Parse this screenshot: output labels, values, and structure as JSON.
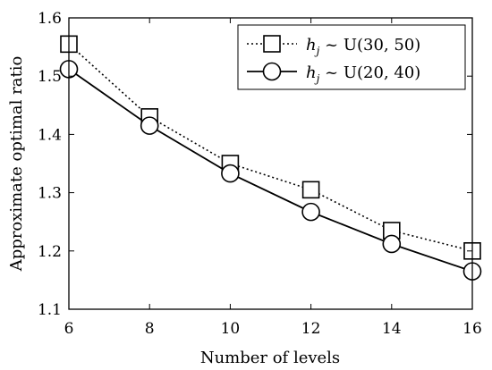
{
  "chart_data": {
    "type": "line",
    "xlabel": "Number of levels",
    "ylabel": "Approximate optimal ratio",
    "x": [
      6,
      8,
      10,
      12,
      14,
      16
    ],
    "xlim": [
      6,
      16
    ],
    "ylim": [
      1.1,
      1.6
    ],
    "xticks": [
      "6",
      "8",
      "10",
      "12",
      "14",
      "16"
    ],
    "yticks": [
      "1.1",
      "1.2",
      "1.3",
      "1.4",
      "1.5",
      "1.6"
    ],
    "grid": false,
    "legend_position": "top-right",
    "series": [
      {
        "name": "h_j ~ U(30, 50)",
        "legend_var": "h",
        "legend_sub": "j",
        "legend_rest": " ~ U(30, 50)",
        "values": [
          1.555,
          1.43,
          1.35,
          1.305,
          1.235,
          1.2
        ],
        "line_style": "dotted",
        "marker": "square",
        "color": "#000000"
      },
      {
        "name": "h_j ~ U(20, 40)",
        "legend_var": "h",
        "legend_sub": "j",
        "legend_rest": " ~ U(20, 40)",
        "values": [
          1.512,
          1.415,
          1.333,
          1.267,
          1.212,
          1.165
        ],
        "line_style": "solid",
        "marker": "circle",
        "color": "#000000"
      }
    ]
  }
}
